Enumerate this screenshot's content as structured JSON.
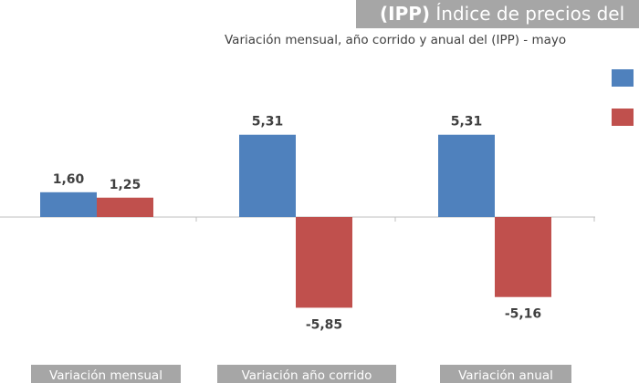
{
  "chart_data": {
    "type": "bar",
    "title_bold": "(IPP)",
    "title_rest": " Índice de precios del",
    "subtitle": "Variación mensual, año corrido y anual del (IPP)  - mayo",
    "categories": [
      "Variación mensual",
      "Variación año corrido",
      "Variación anual"
    ],
    "series": [
      {
        "values": [
          1.6,
          5.31,
          5.31
        ],
        "color": "#4f81bd"
      },
      {
        "values": [
          1.25,
          -5.85,
          -5.16
        ],
        "color": "#c0504d"
      }
    ],
    "data_labels": [
      [
        "1,60",
        "5,31",
        "5,31"
      ],
      [
        "1,25",
        "-5,85",
        "-5,16"
      ]
    ],
    "legend_placement": "right",
    "grid": false
  }
}
